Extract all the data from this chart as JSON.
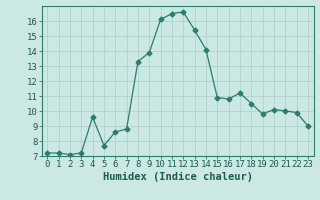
{
  "x": [
    0,
    1,
    2,
    3,
    4,
    5,
    6,
    7,
    8,
    9,
    10,
    11,
    12,
    13,
    14,
    15,
    16,
    17,
    18,
    19,
    20,
    21,
    22,
    23
  ],
  "y": [
    7.2,
    7.2,
    7.1,
    7.2,
    9.6,
    7.7,
    8.6,
    8.8,
    13.3,
    13.9,
    16.1,
    16.5,
    16.6,
    15.4,
    14.1,
    10.9,
    10.8,
    11.2,
    10.5,
    9.8,
    10.1,
    10.0,
    9.9,
    9.0
  ],
  "line_color": "#2d7d6e",
  "marker": "D",
  "marker_size": 2.5,
  "bg_color": "#cce8e4",
  "grid_color": "#aacfcb",
  "xlabel": "Humidex (Indice chaleur)",
  "ylabel": "",
  "ylim": [
    7,
    17
  ],
  "xlim": [
    -0.5,
    23.5
  ],
  "yticks": [
    7,
    8,
    9,
    10,
    11,
    12,
    13,
    14,
    15,
    16
  ],
  "xticks": [
    0,
    1,
    2,
    3,
    4,
    5,
    6,
    7,
    8,
    9,
    10,
    11,
    12,
    13,
    14,
    15,
    16,
    17,
    18,
    19,
    20,
    21,
    22,
    23
  ],
  "tick_fontsize": 6.5,
  "xlabel_fontsize": 7.5,
  "tick_color": "#1a5c50",
  "label_color": "#1a5c50"
}
